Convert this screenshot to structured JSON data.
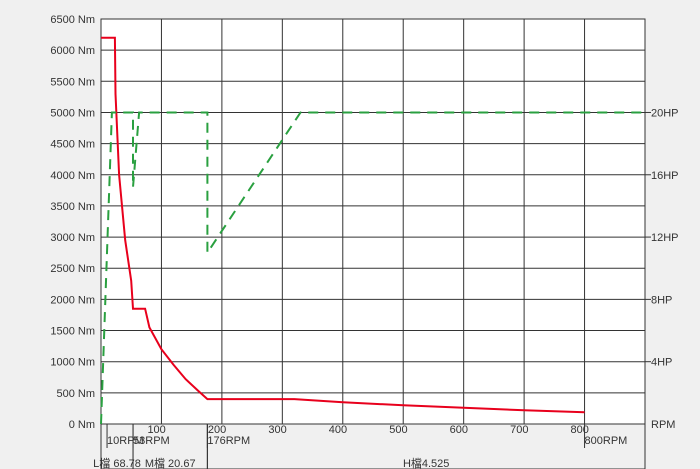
{
  "colors": {
    "background": "#f0f0f0",
    "plot": "#ffffff",
    "grid": "#333333",
    "torque": "#e8001c",
    "power": "#2aa040",
    "text": "#333333"
  },
  "chart_data": {
    "type": "line",
    "title": "",
    "xlabel": "",
    "ylabel": "",
    "y2label": "",
    "xlim": [
      0,
      900
    ],
    "ylim": [
      0,
      6500
    ],
    "y2lim": [
      0,
      26
    ],
    "grid": true,
    "x_ticks": [
      {
        "value": 100,
        "label": "100"
      },
      {
        "value": 200,
        "label": "200"
      },
      {
        "value": 300,
        "label": "300"
      },
      {
        "value": 400,
        "label": "400"
      },
      {
        "value": 500,
        "label": "500"
      },
      {
        "value": 600,
        "label": "600"
      },
      {
        "value": 700,
        "label": "700"
      },
      {
        "value": 800,
        "label": "800"
      }
    ],
    "y_ticks": [
      {
        "value": 0,
        "label": "0 Nm"
      },
      {
        "value": 500,
        "label": "500 Nm"
      },
      {
        "value": 1000,
        "label": "1000 Nm"
      },
      {
        "value": 1500,
        "label": "1500 Nm"
      },
      {
        "value": 2000,
        "label": "2000 Nm"
      },
      {
        "value": 2500,
        "label": "2500 Nm"
      },
      {
        "value": 3000,
        "label": "3000 Nm"
      },
      {
        "value": 3500,
        "label": "3500 Nm"
      },
      {
        "value": 4000,
        "label": "4000 Nm"
      },
      {
        "value": 4500,
        "label": "4500 Nm"
      },
      {
        "value": 5000,
        "label": "5000 Nm"
      },
      {
        "value": 5500,
        "label": "5500 Nm"
      },
      {
        "value": 6000,
        "label": "6000 Nm"
      },
      {
        "value": 6500,
        "label": "6500 Nm"
      }
    ],
    "y2_ticks": [
      {
        "value": 4,
        "label": "4HP"
      },
      {
        "value": 8,
        "label": "8HP"
      },
      {
        "value": 12,
        "label": "12HP"
      },
      {
        "value": 16,
        "label": "16HP"
      },
      {
        "value": 20,
        "label": "20HP"
      }
    ],
    "y2_unit_label": "RPM",
    "rpm_markers": [
      {
        "value": 10,
        "label": "10RPM"
      },
      {
        "value": 53,
        "label": "53RPM"
      },
      {
        "value": 176,
        "label": "176RPM"
      },
      {
        "value": 800,
        "label": "800RPM"
      }
    ],
    "gear_ranges": [
      {
        "from": 0,
        "to": 53,
        "label": "L檔 68.78"
      },
      {
        "from": 53,
        "to": 176,
        "label": "M檔 20.67"
      },
      {
        "from": 176,
        "to": 900,
        "label": "H檔4.525"
      }
    ],
    "series": [
      {
        "name": "",
        "axis": "left",
        "style": "solid",
        "points": [
          [
            0,
            6200
          ],
          [
            23,
            6200
          ],
          [
            24,
            5300
          ],
          [
            30,
            4000
          ],
          [
            40,
            2950
          ],
          [
            50,
            2300
          ],
          [
            53,
            1850
          ],
          [
            73,
            1850
          ],
          [
            80,
            1550
          ],
          [
            100,
            1200
          ],
          [
            120,
            950
          ],
          [
            140,
            720
          ],
          [
            160,
            540
          ],
          [
            176,
            400
          ],
          [
            320,
            400
          ],
          [
            400,
            350
          ],
          [
            500,
            300
          ],
          [
            600,
            260
          ],
          [
            700,
            220
          ],
          [
            800,
            190
          ]
        ]
      },
      {
        "name": "",
        "axis": "right",
        "style": "dashed",
        "points": [
          [
            0,
            0
          ],
          [
            18,
            20
          ],
          [
            53,
            20
          ],
          [
            53,
            15.2
          ],
          [
            63,
            20
          ],
          [
            176,
            20
          ],
          [
            176,
            11
          ],
          [
            330,
            20
          ],
          [
            900,
            20
          ]
        ]
      }
    ]
  }
}
